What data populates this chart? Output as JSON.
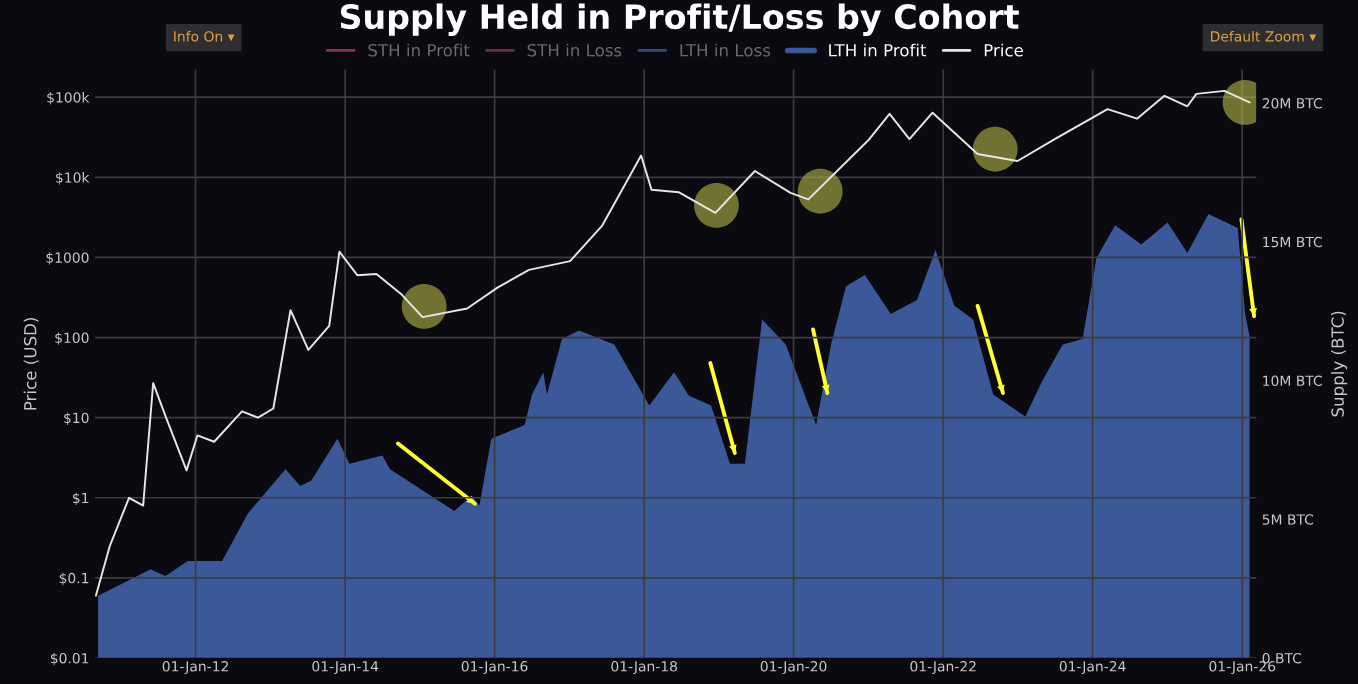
{
  "chart_data": {
    "type": "area",
    "title": "Supply Held in Profit/Loss by Cohort",
    "ylabel": "Price (USD)",
    "y2label": "Supply (BTC)",
    "annotations": [
      "Info On ▾",
      "Default Zoom ▾"
    ],
    "log": "y",
    "grid": true,
    "legend": "top",
    "xlim": [
      "2010-08-28",
      "2026-03-10"
    ],
    "xticks": [
      {
        "value": "2012-01-01",
        "label": "01-Jan-12"
      },
      {
        "value": "2014-01-01",
        "label": "01-Jan-14"
      },
      {
        "value": "2016-01-01",
        "label": "01-Jan-16"
      },
      {
        "value": "2018-01-01",
        "label": "01-Jan-18"
      },
      {
        "value": "2020-01-01",
        "label": "01-Jan-20"
      },
      {
        "value": "2022-01-01",
        "label": "01-Jan-22"
      },
      {
        "value": "2024-01-01",
        "label": "01-Jan-24"
      },
      {
        "value": "2026-01-01",
        "label": "01-Jan-26"
      }
    ],
    "ylim": [
      0.01,
      220000
    ],
    "yticks": [
      {
        "value": 0.01,
        "label": "$0.01"
      },
      {
        "value": 0.1,
        "label": "$0.1"
      },
      {
        "value": 1,
        "label": "$1"
      },
      {
        "value": 10,
        "label": "$10"
      },
      {
        "value": 100,
        "label": "$100"
      },
      {
        "value": 1000,
        "label": "$1000"
      },
      {
        "value": 10000,
        "label": "$10k"
      },
      {
        "value": 100000,
        "label": "$100k"
      }
    ],
    "y2lim": [
      0,
      21200000
    ],
    "y2ticks": [
      {
        "value": 0,
        "label": "0 BTC"
      },
      {
        "value": 5000000,
        "label": "5M BTC"
      },
      {
        "value": 10000000,
        "label": "10M BTC"
      },
      {
        "value": 15000000,
        "label": "15M BTC"
      },
      {
        "value": 20000000,
        "label": "20M BTC"
      }
    ],
    "series": [
      {
        "name": "STH in Profit",
        "type": "line",
        "axis": "y2",
        "color": "#8a3550"
      },
      {
        "name": "STH in Loss",
        "type": "line",
        "axis": "y2",
        "color": "#6a3048"
      },
      {
        "name": "LTH in Loss",
        "type": "line",
        "axis": "y2",
        "color": "#34487a"
      },
      {
        "name": "LTH in Profit",
        "axis": "y2",
        "color": "#3b5998",
        "x": [
          "2010-09-12",
          "2011-05-26",
          "2011-08-07",
          "2011-11-24",
          "2012-05-10",
          "2012-09-12",
          "2013-03-15",
          "2013-05-27",
          "2013-07-20",
          "2013-11-24",
          "2014-01-22",
          "2014-07-02",
          "2014-08-08",
          "2015-06-18",
          "2015-09-12",
          "2015-10-19",
          "2015-12-16",
          "2016-05-27",
          "2016-07-02",
          "2016-08-26",
          "2016-09-13",
          "2016-11-25",
          "2017-02-17",
          "2017-08-08",
          "2018-01-26",
          "2018-05-27",
          "2018-08-08",
          "2018-11-24",
          "2019-02-24",
          "2019-05-08",
          "2019-07-31",
          "2019-11-24",
          "2020-04-20",
          "2020-07-02",
          "2020-09-13",
          "2020-12-14",
          "2021-04-20",
          "2021-08-26",
          "2021-11-24",
          "2022-02-24",
          "2022-05-27",
          "2022-09-02",
          "2023-02-06",
          "2023-05-01",
          "2023-08-08",
          "2023-11-13",
          "2024-01-19",
          "2024-04-20",
          "2024-08-26",
          "2025-01-01",
          "2025-04-08",
          "2025-07-20",
          "2025-12-10",
          "2026-01-15",
          "2026-02-06"
        ],
        "values": [
          2240000,
          3200000,
          2960000,
          3500000,
          3500000,
          5200000,
          6800000,
          6200000,
          6400000,
          7900000,
          7000000,
          7300000,
          6800000,
          5300000,
          5850000,
          5500000,
          7900000,
          8400000,
          9500000,
          10300000,
          9500000,
          11500000,
          11800000,
          11300000,
          9100000,
          10300000,
          9450000,
          9100000,
          7000000,
          7000000,
          12200000,
          11300000,
          8400000,
          11300000,
          13400000,
          13800000,
          12400000,
          12900000,
          14700000,
          12700000,
          12200000,
          9500000,
          8700000,
          10000000,
          11300000,
          11500000,
          14400000,
          15600000,
          14900000,
          15700000,
          14600000,
          16000000,
          15500000,
          12400000,
          11600000
        ]
      },
      {
        "name": "Price",
        "type": "line",
        "axis": "y",
        "color": "#e6e6e6",
        "x": [
          "2010-09-01",
          "2010-11-08",
          "2011-02-10",
          "2011-04-20",
          "2011-06-08",
          "2011-08-10",
          "2011-11-18",
          "2012-01-10",
          "2012-04-01",
          "2012-08-15",
          "2012-11-01",
          "2013-01-15",
          "2013-04-09",
          "2013-07-05",
          "2013-10-15",
          "2013-12-04",
          "2014-03-01",
          "2014-06-03",
          "2014-10-01",
          "2015-01-14",
          "2015-08-20",
          "2016-01-15",
          "2016-06-17",
          "2017-01-04",
          "2017-06-10",
          "2017-12-17",
          "2018-02-06",
          "2018-06-20",
          "2018-12-15",
          "2019-06-26",
          "2019-12-17",
          "2020-03-13",
          "2020-12-31",
          "2021-04-14",
          "2021-07-20",
          "2021-11-10",
          "2022-06-18",
          "2022-12-30",
          "2023-06-30",
          "2024-03-14",
          "2024-08-05",
          "2024-12-17",
          "2025-04-08",
          "2025-05-22",
          "2025-10-06",
          "2026-02-06"
        ],
        "values": [
          0.06,
          0.25,
          1.0,
          0.8,
          27,
          10,
          2.2,
          6,
          5,
          12,
          10,
          13,
          220,
          70,
          140,
          1180,
          600,
          620,
          350,
          180,
          230,
          420,
          700,
          900,
          2500,
          18700,
          7000,
          6500,
          3600,
          12000,
          6400,
          5300,
          29000,
          62000,
          30000,
          64000,
          19500,
          16000,
          30000,
          71000,
          54000,
          104000,
          77000,
          110000,
          120000,
          86000
        ]
      },
      {
        "type": "scatter",
        "axis": "y",
        "color": "#b5b54a",
        "marker": "circle",
        "x": [
          "2015-01-22",
          "2018-12-20",
          "2020-05-10",
          "2022-09-12",
          "2026-01-15"
        ],
        "values": [
          245,
          4470,
          6700,
          22400,
          86000
        ]
      },
      {
        "type": "line",
        "axis": "y2",
        "color": "#ffff33",
        "x": [
          "2014-09-16",
          "2015-09-27"
        ],
        "values": [
          7730000,
          5560000
        ]
      },
      {
        "type": "line",
        "axis": "y2",
        "color": "#ffff33",
        "x": [
          "2018-11-20",
          "2019-03-20"
        ],
        "values": [
          10630000,
          7390000
        ]
      },
      {
        "type": "line",
        "axis": "y2",
        "color": "#ffff33",
        "x": [
          "2020-04-05",
          "2020-06-14"
        ],
        "values": [
          11840000,
          9550000
        ]
      },
      {
        "type": "line",
        "axis": "y2",
        "color": "#ffff33",
        "x": [
          "2022-06-18",
          "2022-10-20"
        ],
        "values": [
          12690000,
          9550000
        ]
      },
      {
        "type": "line",
        "axis": "y2",
        "color": "#ffff33",
        "x": [
          "2025-12-28",
          "2026-02-28"
        ],
        "values": [
          15810000,
          12320000
        ]
      }
    ]
  }
}
